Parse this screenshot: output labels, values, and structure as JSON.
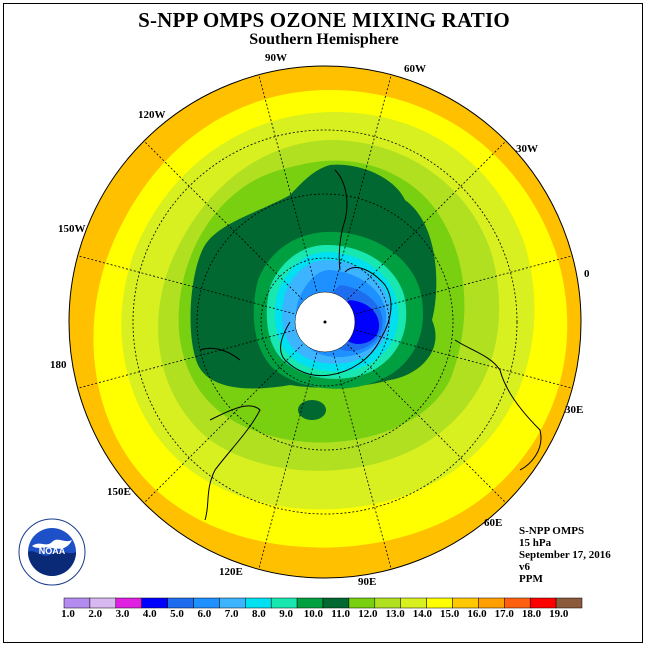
{
  "title": "S-NPP OMPS OZONE MIXING RATIO",
  "subtitle": "Southern Hemisphere",
  "longitude_labels": [
    "90W",
    "60W",
    "30W",
    "0",
    "30E",
    "60E",
    "90E",
    "120E",
    "150E",
    "180",
    "150W",
    "120W"
  ],
  "info": {
    "instrument": "S-NPP OMPS",
    "pressure": "15 hPa",
    "date": "September 17, 2016",
    "version": "v6",
    "units": "PPM"
  },
  "logo_text": "NOAA",
  "colorbar": {
    "levels": [
      "1.0",
      "2.0",
      "3.0",
      "4.0",
      "5.0",
      "6.0",
      "7.0",
      "8.0",
      "9.0",
      "10.0",
      "11.0",
      "12.0",
      "13.0",
      "14.0",
      "15.0",
      "16.0",
      "17.0",
      "18.0",
      "19.0"
    ],
    "colors": [
      "#b48cf0",
      "#d8b8f0",
      "#e020e0",
      "#0000ff",
      "#1e6cf0",
      "#1e90ff",
      "#3cb4ff",
      "#00e0f0",
      "#18e8b0",
      "#00a040",
      "#006830",
      "#78d010",
      "#b0e020",
      "#d8f020",
      "#ffff00",
      "#ffc800",
      "#ffa000",
      "#ff6010",
      "#ff0000",
      "#8b5a3c"
    ]
  },
  "colors": {
    "outer_ring": "#ffc000",
    "polar_night": "#ffffff"
  }
}
